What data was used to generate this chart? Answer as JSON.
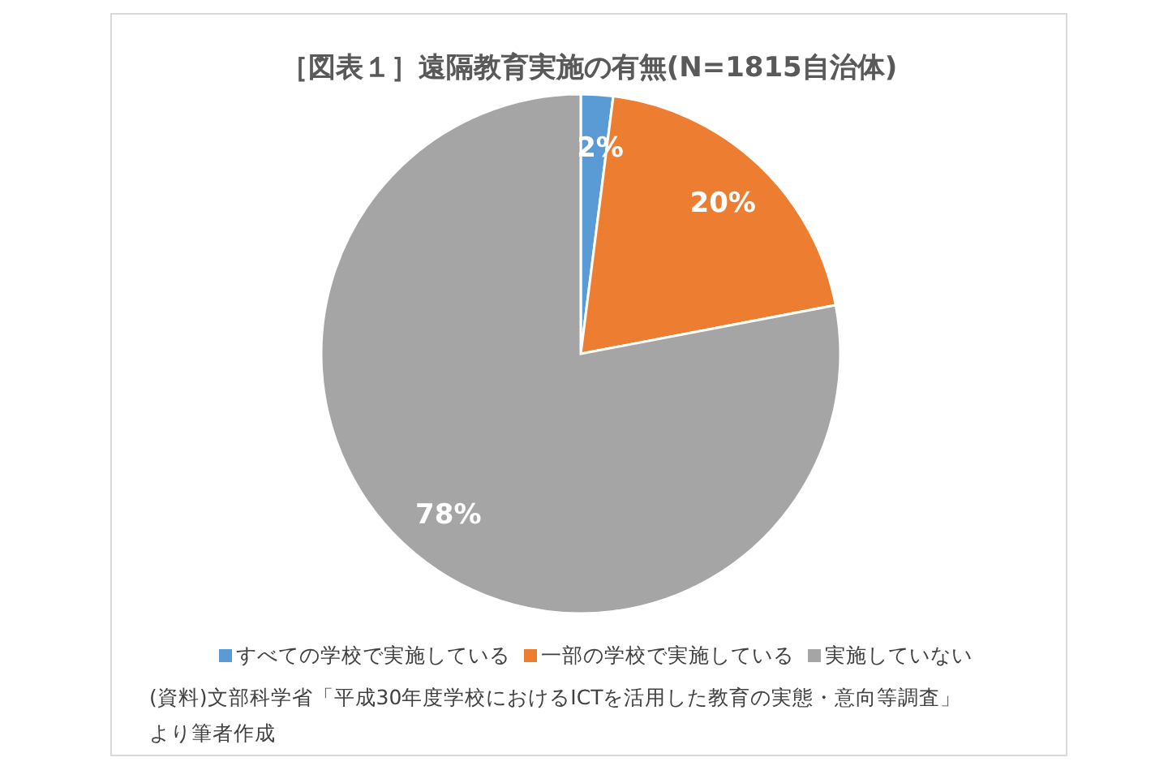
{
  "chart_data": {
    "type": "pie",
    "title": "［図表１］遠隔教育実施の有無(N=1815自治体)",
    "categories": [
      "すべての学校で実施している",
      "一部の学校で実施している",
      "実施していない"
    ],
    "values": [
      2,
      20,
      78
    ],
    "colors": [
      "#5b9bd5",
      "#ed7d31",
      "#a5a5a5"
    ],
    "value_labels": [
      "2%",
      "20%",
      "78%"
    ],
    "legend": "bottom",
    "annotations": [
      "(資料)文部科学省「平成30年度学校におけるICTを活用した教育の実態・意向等調査」より筆者作成"
    ]
  }
}
